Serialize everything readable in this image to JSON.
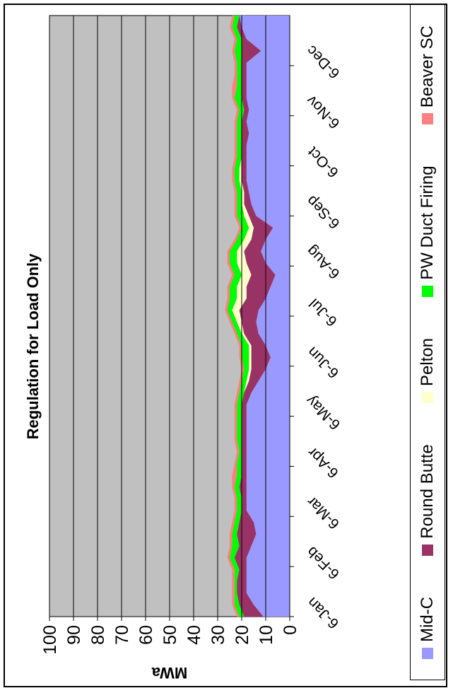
{
  "chart_data": {
    "type": "area",
    "title": "Regulation for Load Only",
    "ylabel": "MWa",
    "xlabel": "",
    "ylim": [
      0,
      100
    ],
    "yticks": [
      "0",
      "10",
      "20",
      "30",
      "40",
      "50",
      "60",
      "70",
      "80",
      "90",
      "100"
    ],
    "xticks": [
      "6-Jan",
      "6-Feb",
      "6-Mar",
      "6-Apr",
      "6-May",
      "6-Jun",
      "6-Jul",
      "6-Aug",
      "6-Sep",
      "6-Oct",
      "6-Nov",
      "6-Dec"
    ],
    "grid": true,
    "background": "#c0c0c0",
    "legend_position": "bottom",
    "stacked": true,
    "x": [
      "1/6",
      "1/13",
      "1/20",
      "1/27",
      "2/3",
      "2/10",
      "2/17",
      "2/24",
      "3/3",
      "3/10",
      "3/17",
      "3/24",
      "3/31",
      "4/7",
      "4/14",
      "4/21",
      "4/28",
      "5/5",
      "5/12",
      "5/19",
      "5/26",
      "6/2",
      "6/9",
      "6/16",
      "6/23",
      "6/30",
      "7/7",
      "7/14",
      "7/21",
      "7/28",
      "8/4",
      "8/11",
      "8/18",
      "8/25",
      "9/1",
      "9/8",
      "9/15",
      "9/22",
      "9/29",
      "10/6",
      "10/13",
      "10/20",
      "10/27",
      "11/3",
      "11/10",
      "11/17",
      "11/24",
      "12/1",
      "12/8",
      "12/15",
      "12/22",
      "12/29"
    ],
    "series": [
      {
        "name": "Mid-C",
        "color": "#9999ff",
        "values": [
          11,
          15,
          18,
          18,
          18,
          18,
          16,
          14,
          15,
          18,
          18,
          18,
          18,
          18,
          18,
          18,
          18,
          18,
          18,
          16,
          13,
          10,
          8,
          10,
          13,
          14,
          13,
          10,
          8,
          6,
          10,
          12,
          10,
          7,
          14,
          16,
          17,
          18,
          18,
          18,
          18,
          17,
          18,
          17,
          18,
          18,
          18,
          18,
          12,
          18,
          20,
          21
        ]
      },
      {
        "name": "Round Butte",
        "color": "#993366",
        "values": [
          8,
          6,
          4,
          4,
          3,
          5,
          5,
          8,
          6,
          2,
          2,
          3,
          2,
          2,
          2,
          2,
          2,
          2,
          2,
          3,
          4,
          6,
          8,
          6,
          6,
          6,
          8,
          8,
          10,
          10,
          8,
          7,
          6,
          8,
          3,
          3,
          2,
          2,
          2,
          2,
          2,
          3,
          2,
          2,
          2,
          2,
          2,
          2,
          8,
          2,
          2,
          0
        ]
      },
      {
        "name": "Pelton",
        "color": "#ffffcc",
        "values": [
          0,
          0,
          0,
          0,
          0,
          0,
          0,
          0,
          0,
          0,
          0,
          0,
          0,
          0,
          0,
          0,
          0,
          0,
          0,
          0,
          1,
          1,
          1,
          1,
          1,
          2,
          3,
          4,
          4,
          4,
          4,
          3,
          3,
          2,
          2,
          1,
          1,
          1,
          1,
          0,
          0,
          0,
          0,
          0,
          0,
          0,
          0,
          0,
          0,
          0,
          0,
          0
        ]
      },
      {
        "name": "PW Duct Firing",
        "color": "#00ff00",
        "values": [
          2,
          2,
          1,
          1,
          2,
          2,
          3,
          2,
          2,
          2,
          2,
          2,
          2,
          2,
          1,
          2,
          2,
          2,
          2,
          2,
          2,
          2,
          3,
          3,
          2,
          2,
          2,
          3,
          3,
          3,
          3,
          3,
          3,
          3,
          3,
          2,
          2,
          2,
          2,
          2,
          2,
          2,
          2,
          2,
          3,
          2,
          2,
          2,
          3,
          2,
          2,
          2
        ]
      },
      {
        "name": "Beaver SC",
        "color": "#ff8080",
        "values": [
          1,
          1,
          1,
          1,
          1,
          1,
          1,
          1,
          1,
          1,
          1,
          1,
          2,
          1,
          1,
          1,
          1,
          1,
          1,
          1,
          1,
          1,
          1,
          1,
          1,
          1,
          1,
          1,
          1,
          1,
          1,
          1,
          1,
          1,
          1,
          1,
          1,
          1,
          1,
          1,
          1,
          1,
          1,
          1,
          1,
          2,
          1,
          1,
          1,
          1,
          1,
          1
        ]
      }
    ]
  }
}
